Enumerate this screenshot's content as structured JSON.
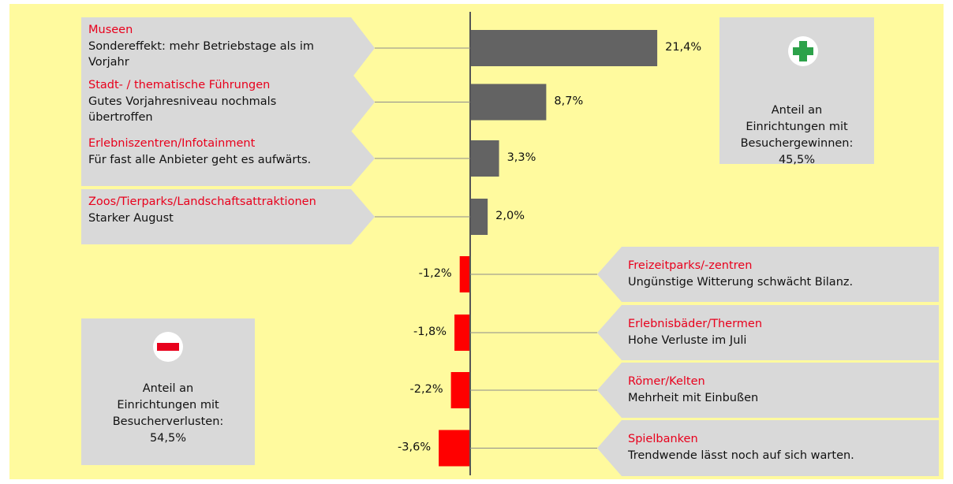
{
  "chart_data": {
    "type": "bar",
    "orientation": "horizontal",
    "categories": [
      "Museen",
      "Stadt- / thematische Führungen",
      "Erlebniszentren/Infotainment",
      "Zoos/Tierparks/Landschaftsattraktionen",
      "Freizeitparks/-zentren",
      "Erlebnisbäder/Thermen",
      "Römer/Kelten",
      "Spielbanken"
    ],
    "descriptions": [
      [
        "Sondereffekt: mehr Betriebstage als im",
        "Vorjahr"
      ],
      [
        "Gutes Vorjahresniveau nochmals",
        "übertroffen"
      ],
      [
        "Für fast alle Anbieter geht es aufwärts."
      ],
      [
        "Starker August"
      ],
      [
        "Ungünstige Witterung schwächt Bilanz."
      ],
      [
        "Hohe Verluste im Juli"
      ],
      [
        "Mehrheit mit Einbußen"
      ],
      [
        "Trendwende lässt noch auf sich warten."
      ]
    ],
    "values": [
      21.4,
      8.7,
      3.3,
      2.0,
      -1.2,
      -1.8,
      -2.2,
      -3.6
    ],
    "value_labels": [
      "21,4%",
      "8,7%",
      "3,3%",
      "2,0%",
      "-1,2%",
      "-1,8%",
      "-2,2%",
      "-3,6%"
    ],
    "colors": [
      "#636363",
      "#636363",
      "#636363",
      "#636363",
      "#ff0000",
      "#ff0000",
      "#ff0000",
      "#ff0000"
    ],
    "annotations": [
      {
        "lines": [
          "Anteil an",
          "Einrichtungen mit",
          "Besuchergewinnen:",
          "45,5%"
        ]
      },
      {
        "lines": [
          "Anteil an",
          "Einrichtungen mit",
          "Besucherverlusten:",
          "54,5%"
        ]
      }
    ]
  }
}
